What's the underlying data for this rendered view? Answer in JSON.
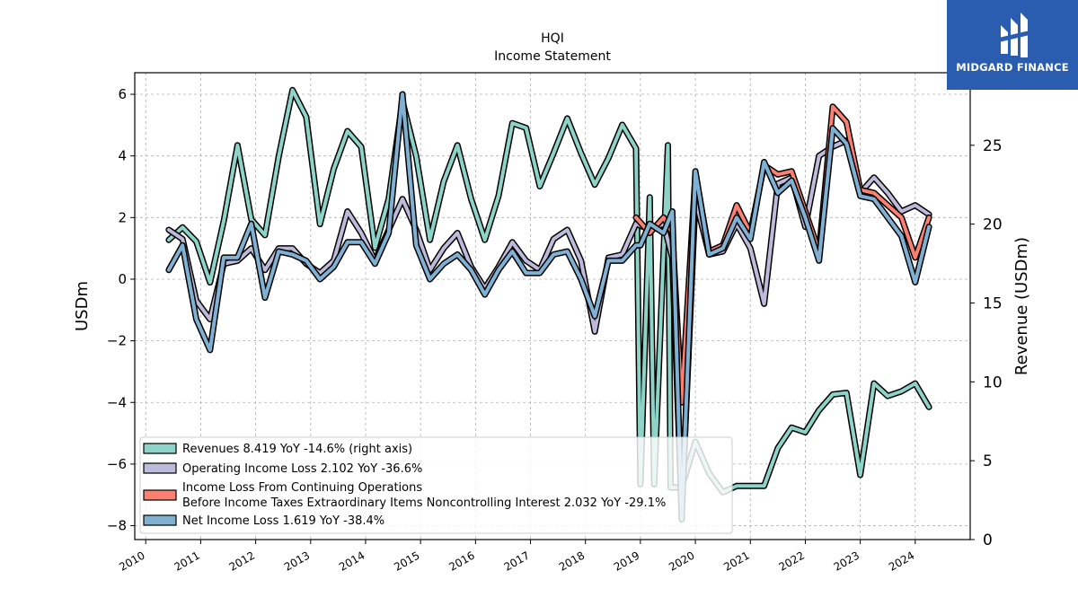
{
  "brand": {
    "name": "MIDGARD FINANCE",
    "logo_icon": "midgard-logo-icon",
    "color": "#2a5db0"
  },
  "chart_data": {
    "type": "line",
    "title": "HQI",
    "subtitle": "Income Statement",
    "ylabel": "USDm",
    "ylabel_right": "Revenue (USDm)",
    "ylim": [
      -8.45,
      6.7
    ],
    "ylim_right": [
      0,
      29.6
    ],
    "xlim": [
      2009.8,
      2025.0
    ],
    "yticks": [
      6,
      4,
      2,
      0,
      -2,
      -4,
      -6,
      -8
    ],
    "yticks_right": [
      0,
      5,
      10,
      15,
      20,
      25
    ],
    "xticks": [
      2010,
      2011,
      2012,
      2013,
      2014,
      2015,
      2016,
      2017,
      2018,
      2019,
      2020,
      2021,
      2022,
      2023,
      2024
    ],
    "grid": true,
    "legend_position": "lower-left",
    "series": [
      {
        "name": "Revenues",
        "axis": "right",
        "color": "#8dd3c7",
        "legend": "Revenues  8.419 YoY -14.6% (right axis)",
        "points": [
          [
            2010.42,
            19.0
          ],
          [
            2010.67,
            19.8
          ],
          [
            2010.92,
            18.9
          ],
          [
            2011.17,
            16.3
          ],
          [
            2011.42,
            20.2
          ],
          [
            2011.67,
            25.0
          ],
          [
            2011.92,
            20.3
          ],
          [
            2012.17,
            19.3
          ],
          [
            2012.42,
            24.3
          ],
          [
            2012.67,
            28.5
          ],
          [
            2012.92,
            26.8
          ],
          [
            2013.17,
            20.0
          ],
          [
            2013.42,
            23.5
          ],
          [
            2013.67,
            25.9
          ],
          [
            2013.92,
            24.9
          ],
          [
            2014.17,
            18.5
          ],
          [
            2014.42,
            21.6
          ],
          [
            2014.67,
            27.8
          ],
          [
            2014.92,
            24.3
          ],
          [
            2015.17,
            19.0
          ],
          [
            2015.42,
            22.7
          ],
          [
            2015.67,
            25.0
          ],
          [
            2015.92,
            21.6
          ],
          [
            2016.17,
            19.0
          ],
          [
            2016.42,
            21.8
          ],
          [
            2016.67,
            26.4
          ],
          [
            2016.92,
            26.1
          ],
          [
            2017.17,
            22.4
          ],
          [
            2017.42,
            24.5
          ],
          [
            2017.67,
            26.7
          ],
          [
            2017.92,
            24.5
          ],
          [
            2018.17,
            22.5
          ],
          [
            2018.42,
            24.2
          ],
          [
            2018.67,
            26.3
          ],
          [
            2018.92,
            24.8
          ],
          [
            2019.0,
            3.5
          ],
          [
            2019.17,
            21.7
          ],
          [
            2019.25,
            3.5
          ],
          [
            2019.5,
            25.0
          ],
          [
            2019.55,
            3.3
          ],
          [
            2019.75,
            3.3
          ],
          [
            2020.0,
            6.2
          ],
          [
            2020.25,
            4.2
          ],
          [
            2020.5,
            3.0
          ],
          [
            2020.75,
            3.4
          ],
          [
            2021.0,
            3.4
          ],
          [
            2021.25,
            3.4
          ],
          [
            2021.5,
            5.8
          ],
          [
            2021.75,
            7.1
          ],
          [
            2022.0,
            6.8
          ],
          [
            2022.25,
            8.2
          ],
          [
            2022.5,
            9.2
          ],
          [
            2022.75,
            9.3
          ],
          [
            2023.0,
            4.1
          ],
          [
            2023.25,
            9.9
          ],
          [
            2023.5,
            9.1
          ],
          [
            2023.75,
            9.4
          ],
          [
            2024.0,
            9.9
          ],
          [
            2024.25,
            8.4
          ]
        ]
      },
      {
        "name": "Operating Income Loss",
        "axis": "left",
        "color": "#bebada",
        "legend": "Operating Income Loss  2.102 YoY -36.6%",
        "points": [
          [
            2010.42,
            1.6
          ],
          [
            2010.67,
            1.3
          ],
          [
            2010.92,
            -0.7
          ],
          [
            2011.17,
            -1.3
          ],
          [
            2011.42,
            0.5
          ],
          [
            2011.67,
            0.6
          ],
          [
            2011.92,
            1.0
          ],
          [
            2012.17,
            0.3
          ],
          [
            2012.42,
            1.0
          ],
          [
            2012.67,
            1.0
          ],
          [
            2012.92,
            0.5
          ],
          [
            2013.17,
            0.2
          ],
          [
            2013.42,
            0.6
          ],
          [
            2013.67,
            2.2
          ],
          [
            2013.92,
            1.5
          ],
          [
            2014.17,
            0.6
          ],
          [
            2014.42,
            1.6
          ],
          [
            2014.67,
            2.6
          ],
          [
            2014.92,
            1.6
          ],
          [
            2015.17,
            0.3
          ],
          [
            2015.42,
            1.0
          ],
          [
            2015.67,
            1.5
          ],
          [
            2015.92,
            0.4
          ],
          [
            2016.17,
            -0.3
          ],
          [
            2016.42,
            0.4
          ],
          [
            2016.67,
            1.2
          ],
          [
            2016.92,
            0.6
          ],
          [
            2017.17,
            0.3
          ],
          [
            2017.42,
            1.3
          ],
          [
            2017.67,
            1.6
          ],
          [
            2017.92,
            0.6
          ],
          [
            2018.17,
            -1.7
          ],
          [
            2018.42,
            0.7
          ],
          [
            2018.67,
            0.8
          ],
          [
            2018.92,
            1.8
          ],
          [
            2019.17,
            1.6
          ],
          [
            2019.42,
            1.8
          ],
          [
            2019.58,
            0.7
          ],
          [
            2019.75,
            -7.5
          ],
          [
            2020.0,
            2.6
          ],
          [
            2020.25,
            0.8
          ],
          [
            2020.5,
            0.9
          ],
          [
            2020.75,
            1.8
          ],
          [
            2021.0,
            1.0
          ],
          [
            2021.25,
            -0.8
          ],
          [
            2021.5,
            3.1
          ],
          [
            2021.75,
            3.3
          ],
          [
            2022.0,
            1.7
          ],
          [
            2022.25,
            4.0
          ],
          [
            2022.5,
            4.3
          ],
          [
            2022.75,
            4.5
          ],
          [
            2023.0,
            2.8
          ],
          [
            2023.25,
            3.3
          ],
          [
            2023.5,
            2.8
          ],
          [
            2023.75,
            2.2
          ],
          [
            2024.0,
            2.4
          ],
          [
            2024.25,
            2.1
          ]
        ]
      },
      {
        "name": "Income Loss From Continuing Operations Before Income Taxes Extraordinary Items Noncontrolling Interest",
        "axis": "left",
        "color": "#fb8072",
        "legend": "Income Loss From Continuing Operations",
        "legend_line2": "Before Income Taxes Extraordinary Items Noncontrolling Interest  2.032 YoY -29.1%",
        "points": [
          [
            2018.92,
            2.0
          ],
          [
            2019.17,
            1.5
          ],
          [
            2019.42,
            2.0
          ],
          [
            2019.58,
            1.5
          ],
          [
            2019.75,
            -4.0
          ],
          [
            2020.0,
            3.4
          ],
          [
            2020.25,
            0.9
          ],
          [
            2020.5,
            1.1
          ],
          [
            2020.75,
            2.4
          ],
          [
            2021.0,
            1.5
          ],
          [
            2021.25,
            3.7
          ],
          [
            2021.5,
            3.4
          ],
          [
            2021.75,
            3.5
          ],
          [
            2022.0,
            2.2
          ],
          [
            2022.25,
            0.9
          ],
          [
            2022.5,
            5.6
          ],
          [
            2022.75,
            5.1
          ],
          [
            2023.0,
            2.9
          ],
          [
            2023.25,
            2.8
          ],
          [
            2023.5,
            2.4
          ],
          [
            2023.75,
            2.0
          ],
          [
            2024.0,
            0.7
          ],
          [
            2024.25,
            2.0
          ]
        ]
      },
      {
        "name": "Net Income Loss",
        "axis": "left",
        "color": "#80b1d3",
        "legend": "Net Income Loss  1.619 YoY -38.4%",
        "points": [
          [
            2010.42,
            0.3
          ],
          [
            2010.67,
            1.1
          ],
          [
            2010.92,
            -1.3
          ],
          [
            2011.17,
            -2.3
          ],
          [
            2011.42,
            0.7
          ],
          [
            2011.67,
            0.7
          ],
          [
            2011.92,
            1.8
          ],
          [
            2012.17,
            -0.6
          ],
          [
            2012.42,
            0.9
          ],
          [
            2012.67,
            0.8
          ],
          [
            2012.92,
            0.6
          ],
          [
            2013.17,
            0.0
          ],
          [
            2013.42,
            0.4
          ],
          [
            2013.67,
            1.2
          ],
          [
            2013.92,
            1.2
          ],
          [
            2014.17,
            0.5
          ],
          [
            2014.42,
            1.5
          ],
          [
            2014.67,
            6.0
          ],
          [
            2014.92,
            1.1
          ],
          [
            2015.17,
            0.0
          ],
          [
            2015.42,
            0.5
          ],
          [
            2015.67,
            0.8
          ],
          [
            2015.92,
            0.3
          ],
          [
            2016.17,
            -0.5
          ],
          [
            2016.42,
            0.3
          ],
          [
            2016.67,
            0.9
          ],
          [
            2016.92,
            0.2
          ],
          [
            2017.17,
            0.2
          ],
          [
            2017.42,
            0.8
          ],
          [
            2017.67,
            0.9
          ],
          [
            2017.92,
            0.0
          ],
          [
            2018.17,
            -1.2
          ],
          [
            2018.42,
            0.6
          ],
          [
            2018.67,
            0.6
          ],
          [
            2018.92,
            1.1
          ],
          [
            2019.0,
            1.1
          ],
          [
            2019.17,
            1.8
          ],
          [
            2019.42,
            1.5
          ],
          [
            2019.58,
            2.2
          ],
          [
            2019.75,
            -7.8
          ],
          [
            2020.0,
            3.5
          ],
          [
            2020.25,
            0.8
          ],
          [
            2020.5,
            1.0
          ],
          [
            2020.75,
            2.0
          ],
          [
            2021.0,
            1.3
          ],
          [
            2021.25,
            3.8
          ],
          [
            2021.5,
            2.8
          ],
          [
            2021.75,
            3.2
          ],
          [
            2022.0,
            2.0
          ],
          [
            2022.25,
            0.6
          ],
          [
            2022.5,
            4.9
          ],
          [
            2022.75,
            4.4
          ],
          [
            2023.0,
            2.7
          ],
          [
            2023.25,
            2.6
          ],
          [
            2023.5,
            2.0
          ],
          [
            2023.75,
            1.4
          ],
          [
            2024.0,
            -0.1
          ],
          [
            2024.25,
            1.7
          ]
        ]
      }
    ]
  }
}
